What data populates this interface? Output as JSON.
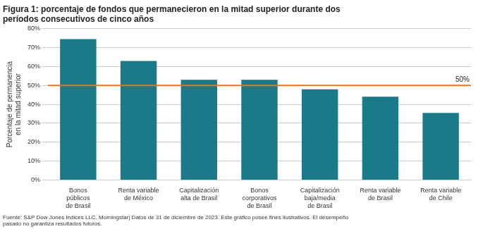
{
  "chart_data": {
    "type": "bar",
    "title": "Figura 1: porcentaje de fondos que permanecieron en la mitad superior durante dos\nperíodos consecutivos de cinco años",
    "categories": [
      "Bonos\npúblicos\nde Brasil",
      "Renta variable\nde México",
      "Capitalización\nalta de Brasil",
      "Bonos\ncorporativos\nde Brasil",
      "Capitalización\nbaja/media\nde Brasil",
      "Renta variable\nde Brasil",
      "Renta variable\nde Chile"
    ],
    "values": [
      74.5,
      63.0,
      53.0,
      53.0,
      48.0,
      44.0,
      35.5
    ],
    "color": "#1a7a8a",
    "ylabel": "Porcentaje de permanencia\nen la mitad superior",
    "ylim": [
      0,
      80
    ],
    "yticks": [
      {
        "value": 0,
        "label": "0%"
      },
      {
        "value": 10,
        "label": "10%"
      },
      {
        "value": 20,
        "label": "20%"
      },
      {
        "value": 30,
        "label": "30%"
      },
      {
        "value": 40,
        "label": "40%"
      },
      {
        "value": 50,
        "label": "50%"
      },
      {
        "value": 60,
        "label": "60%"
      },
      {
        "value": 70,
        "label": "70%"
      },
      {
        "value": 80,
        "label": "80%"
      }
    ],
    "grid": true,
    "annotations": [
      {
        "y": 50,
        "label": "50%",
        "color": "#e07820"
      }
    ],
    "footnote": "Fuente: S&P Dow Jones Indices LLC, Morningstar| Datos de 31 de diciembre de 2023. Este gráfico posee fines ilustrativos. El desempeño\npasado no garantiza resultados futuros."
  }
}
